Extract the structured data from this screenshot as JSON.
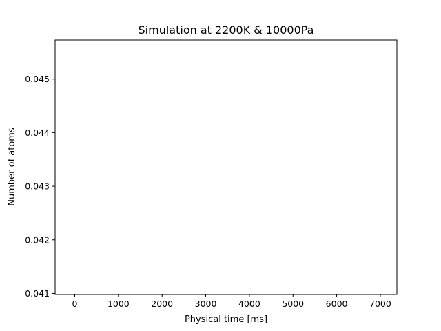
{
  "chart_data": {
    "type": "line",
    "title": "Simulation at 2200K & 10000Pa",
    "xlabel": "Physical time [ms]",
    "ylabel": "Number of atoms",
    "xlim": [
      -450,
      7380
    ],
    "ylim": [
      0.04098,
      0.04573
    ],
    "xticks": [
      {
        "value": 0,
        "label": "0"
      },
      {
        "value": 1000,
        "label": "1000"
      },
      {
        "value": 2000,
        "label": "2000"
      },
      {
        "value": 3000,
        "label": "3000"
      },
      {
        "value": 4000,
        "label": "4000"
      },
      {
        "value": 5000,
        "label": "5000"
      },
      {
        "value": 6000,
        "label": "6000"
      },
      {
        "value": 7000,
        "label": "7000"
      }
    ],
    "yticks": [
      {
        "value": 0.041,
        "label": "0.041"
      },
      {
        "value": 0.042,
        "label": "0.042"
      },
      {
        "value": 0.043,
        "label": "0.043"
      },
      {
        "value": 0.044,
        "label": "0.044"
      },
      {
        "value": 0.045,
        "label": "0.045"
      }
    ],
    "series": [],
    "grid": false,
    "legend": "none",
    "colors": {
      "axes": "#000000",
      "background": "#ffffff"
    }
  }
}
